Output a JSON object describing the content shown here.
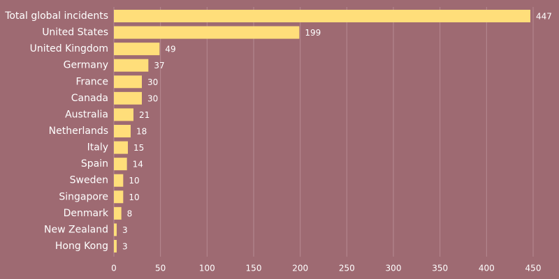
{
  "colors": {
    "background": "#9e6a72",
    "bar": "#ffde7a",
    "text": "#ffffff",
    "grid": "#b78a91"
  },
  "chart_data": {
    "type": "bar",
    "orientation": "horizontal",
    "title": "",
    "xlabel": "",
    "ylabel": "",
    "categories": [
      "Total global incidents",
      "United States",
      "United Kingdom",
      "Germany",
      "France",
      "Canada",
      "Australia",
      "Netherlands",
      "Italy",
      "Spain",
      "Sweden",
      "Singapore",
      "Denmark",
      "New Zealand",
      "Hong Kong"
    ],
    "values": [
      447,
      199,
      49,
      37,
      30,
      30,
      21,
      18,
      15,
      14,
      10,
      10,
      8,
      3,
      3
    ],
    "xlim": [
      0,
      450
    ],
    "xticks": [
      0,
      50,
      100,
      150,
      200,
      250,
      300,
      350,
      400,
      450
    ],
    "grid": "vertical",
    "legend": "none"
  }
}
